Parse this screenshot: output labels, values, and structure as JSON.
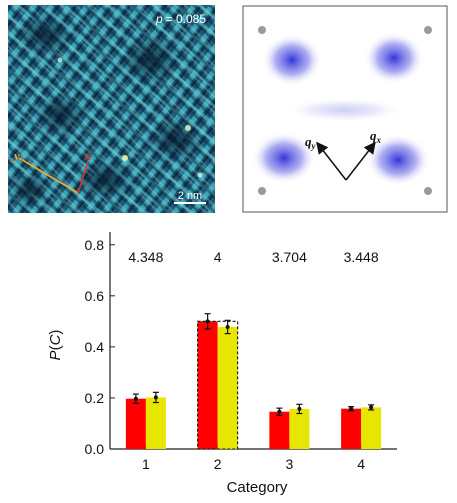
{
  "stm_panel": {
    "doping_label": "p = 0.085",
    "doping_var": "p",
    "doping_value": "= 0.085",
    "scale_bar_label": "2 nm",
    "axis_x_label": "x",
    "axis_y_label": "y",
    "axis_x_color": "#e0302a",
    "axis_y_color": "#f0a830"
  },
  "fft_panel": {
    "qx_label": "q",
    "qx_sub": "x",
    "qy_label": "q",
    "qy_sub": "y"
  },
  "chart_data": {
    "type": "bar",
    "categories": [
      "1",
      "2",
      "3",
      "4"
    ],
    "xlabel": "Category",
    "ylabel": "P(C)",
    "ylim": [
      0,
      0.85
    ],
    "yticks": [
      "0.0",
      "0.2",
      "0.4",
      "0.6",
      "0.8"
    ],
    "top_labels": [
      "4.348",
      "4",
      "3.704",
      "3.448"
    ],
    "series": [
      {
        "color": "#ff0000",
        "values": [
          0.197,
          0.5,
          0.146,
          0.158
        ],
        "errors": [
          0.018,
          0.03,
          0.014,
          0.008
        ]
      },
      {
        "color": "#e6e600",
        "values": [
          0.202,
          0.478,
          0.157,
          0.163
        ],
        "errors": [
          0.02,
          0.026,
          0.018,
          0.01
        ]
      }
    ],
    "highlighted_category": "2"
  }
}
